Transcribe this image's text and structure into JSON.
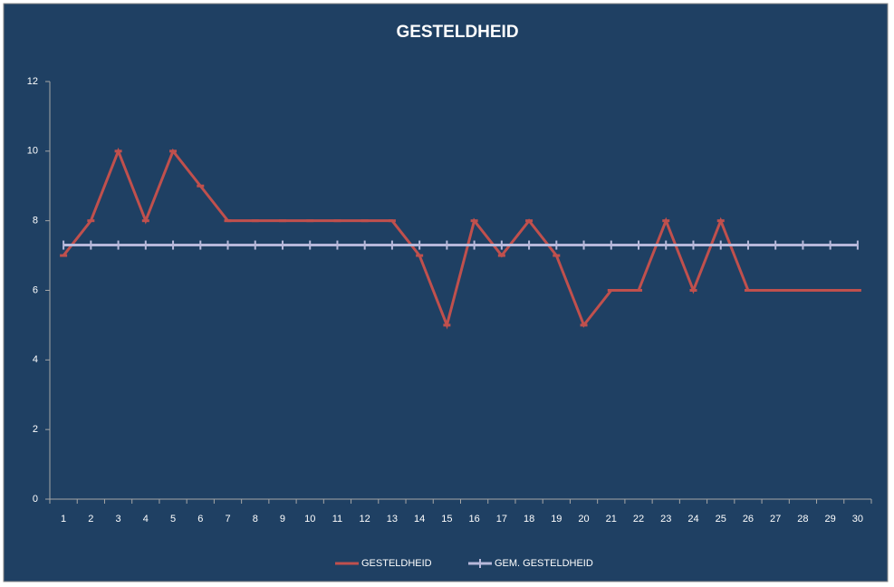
{
  "chart_data": {
    "type": "line",
    "title": "GESTELDHEID",
    "categories": [
      "1",
      "2",
      "3",
      "4",
      "5",
      "6",
      "7",
      "8",
      "9",
      "10",
      "11",
      "12",
      "13",
      "14",
      "15",
      "16",
      "17",
      "18",
      "19",
      "20",
      "21",
      "22",
      "23",
      "24",
      "25",
      "26",
      "27",
      "28",
      "29",
      "30"
    ],
    "series": [
      {
        "name": "GESTELDHEID",
        "color": "#c0504d",
        "values": [
          7,
          8,
          10,
          8,
          10,
          9,
          8,
          8,
          8,
          8,
          8,
          8,
          8,
          7,
          5,
          8,
          7,
          8,
          7,
          5,
          6,
          6,
          8,
          6,
          8,
          6,
          6,
          6,
          6,
          6
        ]
      },
      {
        "name": "GEM. GESTELDHEID",
        "color": "#b7b8da",
        "values": [
          7.3,
          7.3,
          7.3,
          7.3,
          7.3,
          7.3,
          7.3,
          7.3,
          7.3,
          7.3,
          7.3,
          7.3,
          7.3,
          7.3,
          7.3,
          7.3,
          7.3,
          7.3,
          7.3,
          7.3,
          7.3,
          7.3,
          7.3,
          7.3,
          7.3,
          7.3,
          7.3,
          7.3,
          7.3,
          7.3
        ]
      }
    ],
    "ylim": [
      0,
      12
    ],
    "yticks": [
      0,
      2,
      4,
      6,
      8,
      10,
      12
    ],
    "grid": false,
    "legend": "bottom"
  }
}
